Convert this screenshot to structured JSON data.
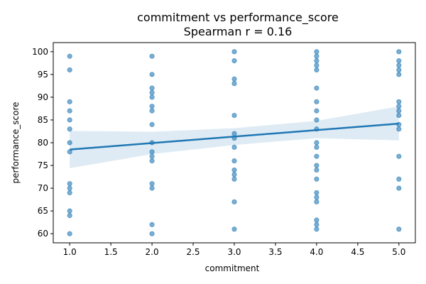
{
  "chart_data": {
    "type": "scatter",
    "title": "commitment vs performance_score",
    "subtitle": "Spearman r = 0.16",
    "xlabel": "commitment",
    "ylabel": "performance_score",
    "xlim": [
      0.8,
      5.2
    ],
    "ylim": [
      58.0,
      102.0
    ],
    "xticks": [
      1.0,
      1.5,
      2.0,
      2.5,
      3.0,
      3.5,
      4.0,
      4.5,
      5.0
    ],
    "xtick_labels": [
      "1.0",
      "1.5",
      "2.0",
      "2.5",
      "3.0",
      "3.5",
      "4.0",
      "4.5",
      "5.0"
    ],
    "yticks": [
      60,
      65,
      70,
      75,
      80,
      85,
      90,
      95,
      100
    ],
    "ytick_labels": [
      "60",
      "65",
      "70",
      "75",
      "80",
      "85",
      "90",
      "95",
      "100"
    ],
    "grid": false,
    "points": [
      {
        "x": 1,
        "y": 99
      },
      {
        "x": 1,
        "y": 96
      },
      {
        "x": 1,
        "y": 89
      },
      {
        "x": 1,
        "y": 87
      },
      {
        "x": 1,
        "y": 85
      },
      {
        "x": 1,
        "y": 83
      },
      {
        "x": 1,
        "y": 80
      },
      {
        "x": 1,
        "y": 78
      },
      {
        "x": 1,
        "y": 71
      },
      {
        "x": 1,
        "y": 70
      },
      {
        "x": 1,
        "y": 69
      },
      {
        "x": 1,
        "y": 65
      },
      {
        "x": 1,
        "y": 64
      },
      {
        "x": 1,
        "y": 60
      },
      {
        "x": 2,
        "y": 99
      },
      {
        "x": 2,
        "y": 95
      },
      {
        "x": 2,
        "y": 92
      },
      {
        "x": 2,
        "y": 91
      },
      {
        "x": 2,
        "y": 90
      },
      {
        "x": 2,
        "y": 88
      },
      {
        "x": 2,
        "y": 87
      },
      {
        "x": 2,
        "y": 84
      },
      {
        "x": 2,
        "y": 80
      },
      {
        "x": 2,
        "y": 78
      },
      {
        "x": 2,
        "y": 77
      },
      {
        "x": 2,
        "y": 76
      },
      {
        "x": 2,
        "y": 71
      },
      {
        "x": 2,
        "y": 70
      },
      {
        "x": 2,
        "y": 62
      },
      {
        "x": 2,
        "y": 60
      },
      {
        "x": 3,
        "y": 100
      },
      {
        "x": 3,
        "y": 98
      },
      {
        "x": 3,
        "y": 94
      },
      {
        "x": 3,
        "y": 93
      },
      {
        "x": 3,
        "y": 86
      },
      {
        "x": 3,
        "y": 82
      },
      {
        "x": 3,
        "y": 81
      },
      {
        "x": 3,
        "y": 79
      },
      {
        "x": 3,
        "y": 76
      },
      {
        "x": 3,
        "y": 74
      },
      {
        "x": 3,
        "y": 73
      },
      {
        "x": 3,
        "y": 72
      },
      {
        "x": 3,
        "y": 67
      },
      {
        "x": 3,
        "y": 61
      },
      {
        "x": 4,
        "y": 100
      },
      {
        "x": 4,
        "y": 99
      },
      {
        "x": 4,
        "y": 98
      },
      {
        "x": 4,
        "y": 97
      },
      {
        "x": 4,
        "y": 96
      },
      {
        "x": 4,
        "y": 92
      },
      {
        "x": 4,
        "y": 89
      },
      {
        "x": 4,
        "y": 87
      },
      {
        "x": 4,
        "y": 85
      },
      {
        "x": 4,
        "y": 83
      },
      {
        "x": 4,
        "y": 80
      },
      {
        "x": 4,
        "y": 79
      },
      {
        "x": 4,
        "y": 77
      },
      {
        "x": 4,
        "y": 75
      },
      {
        "x": 4,
        "y": 74
      },
      {
        "x": 4,
        "y": 72
      },
      {
        "x": 4,
        "y": 69
      },
      {
        "x": 4,
        "y": 68
      },
      {
        "x": 4,
        "y": 67
      },
      {
        "x": 4,
        "y": 63
      },
      {
        "x": 4,
        "y": 62
      },
      {
        "x": 4,
        "y": 61
      },
      {
        "x": 5,
        "y": 100
      },
      {
        "x": 5,
        "y": 98
      },
      {
        "x": 5,
        "y": 97
      },
      {
        "x": 5,
        "y": 96
      },
      {
        "x": 5,
        "y": 95
      },
      {
        "x": 5,
        "y": 89
      },
      {
        "x": 5,
        "y": 88
      },
      {
        "x": 5,
        "y": 87
      },
      {
        "x": 5,
        "y": 86
      },
      {
        "x": 5,
        "y": 84
      },
      {
        "x": 5,
        "y": 83
      },
      {
        "x": 5,
        "y": 77
      },
      {
        "x": 5,
        "y": 72
      },
      {
        "x": 5,
        "y": 70
      },
      {
        "x": 5,
        "y": 61
      }
    ],
    "regression": {
      "x": [
        1.0,
        5.0
      ],
      "y": [
        78.5,
        84.2
      ],
      "ci_band": {
        "x": [
          1.0,
          2.0,
          3.0,
          4.0,
          5.0
        ],
        "lower": [
          74.4,
          77.5,
          79.5,
          81.0,
          80.5
        ],
        "upper": [
          82.6,
          82.4,
          83.2,
          84.8,
          88.0
        ]
      }
    },
    "colors": {
      "points": "#1f77b4",
      "line": "#1f77b4",
      "band": "#1f77b4"
    }
  }
}
